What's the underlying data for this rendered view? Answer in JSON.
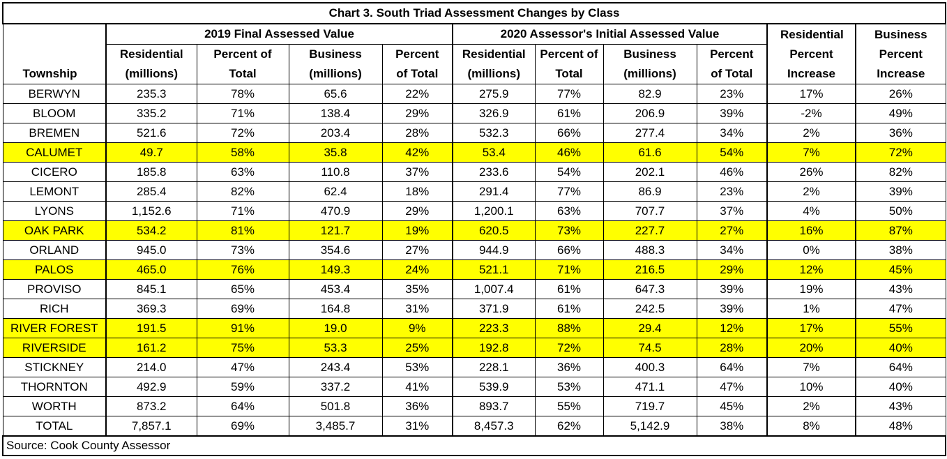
{
  "chart_data": {
    "type": "table",
    "title": "Chart 3. South Triad Assessment Changes by Class",
    "group_headers": {
      "g2019": "2019 Final Assessed Value",
      "g2020": "2020 Assessor's Initial Assessed Value",
      "res_inc": "Residential Percent Increase",
      "bus_inc": "Business Percent Increase"
    },
    "columns": {
      "township": "Township",
      "res": "Residential (millions)",
      "pct": "Percent of Total",
      "bus": "Business (millions)",
      "pct2": "Percent of Total"
    },
    "highlight_color": "#ffff00",
    "rows": [
      {
        "t": "BERWYN",
        "c": [
          "235.3",
          "78%",
          "65.6",
          "22%",
          "275.9",
          "77%",
          "82.9",
          "23%",
          "17%",
          "26%"
        ],
        "hl": false
      },
      {
        "t": "BLOOM",
        "c": [
          "335.2",
          "71%",
          "138.4",
          "29%",
          "326.9",
          "61%",
          "206.9",
          "39%",
          "-2%",
          "49%"
        ],
        "hl": false
      },
      {
        "t": "BREMEN",
        "c": [
          "521.6",
          "72%",
          "203.4",
          "28%",
          "532.3",
          "66%",
          "277.4",
          "34%",
          "2%",
          "36%"
        ],
        "hl": false
      },
      {
        "t": "CALUMET",
        "c": [
          "49.7",
          "58%",
          "35.8",
          "42%",
          "53.4",
          "46%",
          "61.6",
          "54%",
          "7%",
          "72%"
        ],
        "hl": true
      },
      {
        "t": "CICERO",
        "c": [
          "185.8",
          "63%",
          "110.8",
          "37%",
          "233.6",
          "54%",
          "202.1",
          "46%",
          "26%",
          "82%"
        ],
        "hl": false
      },
      {
        "t": "LEMONT",
        "c": [
          "285.4",
          "82%",
          "62.4",
          "18%",
          "291.4",
          "77%",
          "86.9",
          "23%",
          "2%",
          "39%"
        ],
        "hl": false
      },
      {
        "t": "LYONS",
        "c": [
          "1,152.6",
          "71%",
          "470.9",
          "29%",
          "1,200.1",
          "63%",
          "707.7",
          "37%",
          "4%",
          "50%"
        ],
        "hl": false
      },
      {
        "t": "OAK PARK",
        "c": [
          "534.2",
          "81%",
          "121.7",
          "19%",
          "620.5",
          "73%",
          "227.7",
          "27%",
          "16%",
          "87%"
        ],
        "hl": true
      },
      {
        "t": "ORLAND",
        "c": [
          "945.0",
          "73%",
          "354.6",
          "27%",
          "944.9",
          "66%",
          "488.3",
          "34%",
          "0%",
          "38%"
        ],
        "hl": false
      },
      {
        "t": "PALOS",
        "c": [
          "465.0",
          "76%",
          "149.3",
          "24%",
          "521.1",
          "71%",
          "216.5",
          "29%",
          "12%",
          "45%"
        ],
        "hl": true
      },
      {
        "t": "PROVISO",
        "c": [
          "845.1",
          "65%",
          "453.4",
          "35%",
          "1,007.4",
          "61%",
          "647.3",
          "39%",
          "19%",
          "43%"
        ],
        "hl": false
      },
      {
        "t": "RICH",
        "c": [
          "369.3",
          "69%",
          "164.8",
          "31%",
          "371.9",
          "61%",
          "242.5",
          "39%",
          "1%",
          "47%"
        ],
        "hl": false
      },
      {
        "t": "RIVER FOREST",
        "c": [
          "191.5",
          "91%",
          "19.0",
          "9%",
          "223.3",
          "88%",
          "29.4",
          "12%",
          "17%",
          "55%"
        ],
        "hl": true
      },
      {
        "t": "RIVERSIDE",
        "c": [
          "161.2",
          "75%",
          "53.3",
          "25%",
          "192.8",
          "72%",
          "74.5",
          "28%",
          "20%",
          "40%"
        ],
        "hl": true
      },
      {
        "t": "STICKNEY",
        "c": [
          "214.0",
          "47%",
          "243.4",
          "53%",
          "228.1",
          "36%",
          "400.3",
          "64%",
          "7%",
          "64%"
        ],
        "hl": false
      },
      {
        "t": "THORNTON",
        "c": [
          "492.9",
          "59%",
          "337.2",
          "41%",
          "539.9",
          "53%",
          "471.1",
          "47%",
          "10%",
          "40%"
        ],
        "hl": false
      },
      {
        "t": "WORTH",
        "c": [
          "873.2",
          "64%",
          "501.8",
          "36%",
          "893.7",
          "55%",
          "719.7",
          "45%",
          "2%",
          "43%"
        ],
        "hl": false
      },
      {
        "t": "TOTAL",
        "c": [
          "7,857.1",
          "69%",
          "3,485.7",
          "31%",
          "8,457.3",
          "62%",
          "5,142.9",
          "38%",
          "8%",
          "48%"
        ],
        "hl": false
      }
    ],
    "source": "Source: Cook County Assessor"
  }
}
